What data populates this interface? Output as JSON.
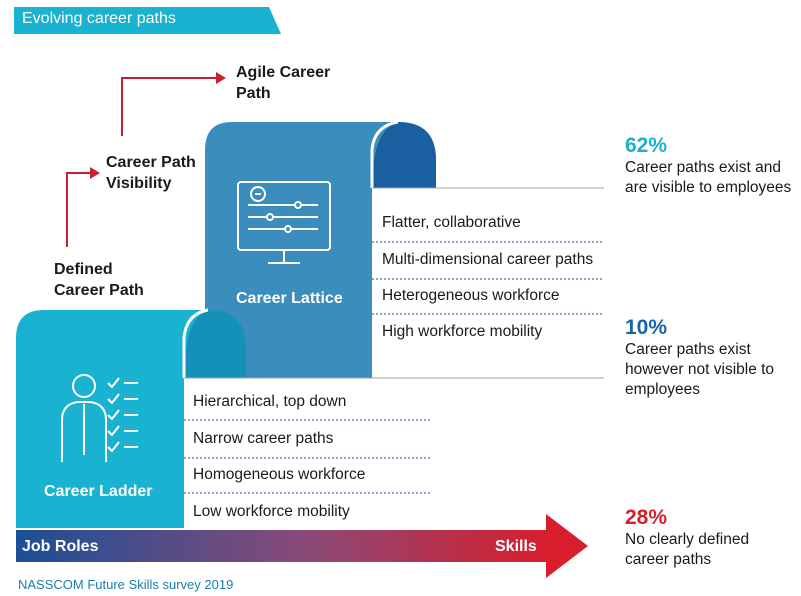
{
  "header": {
    "title": "Evolving career paths"
  },
  "steps": [
    {
      "label_l1": "Agile Career",
      "label_l2": "Path"
    },
    {
      "label_l1": "Career Path",
      "label_l2": "Visibility"
    },
    {
      "label_l1": "Defined",
      "label_l2": "Career Path"
    }
  ],
  "lattice": {
    "label": "Career Lattice",
    "items": [
      "Flatter, collaborative",
      "Multi-dimensional career paths",
      "Heterogeneous workforce",
      "High workforce mobility"
    ]
  },
  "ladder": {
    "label": "Career Ladder",
    "items": [
      "Hierarchical, top down",
      "Narrow career paths",
      "Homogeneous workforce",
      "Low workforce mobility"
    ]
  },
  "axis": {
    "left_label": "Job Roles",
    "right_label": "Skills"
  },
  "stats": [
    {
      "pct": "62%",
      "line1": "Career paths exist and",
      "line2": "are visible to employees",
      "line3": "",
      "color": "#1ab0cf"
    },
    {
      "pct": "10%",
      "line1": "Career paths exist",
      "line2": "however not visible to",
      "line3": "employees",
      "color": "#1565a8"
    },
    {
      "pct": "28%",
      "line1": "No clearly defined",
      "line2": "career paths",
      "line3": "",
      "color": "#d81e2c"
    }
  ],
  "source": "NASSCOM Future Skills survey 2019",
  "colors": {
    "cyan": "#19b3d1",
    "teal": "#3a8dbd",
    "navy": "#1b4f96",
    "red": "#d81e2c",
    "arrow_red": "#c8202e"
  },
  "icons": {
    "lattice": "computer-settings-icon",
    "ladder": "person-checklist-icon"
  }
}
